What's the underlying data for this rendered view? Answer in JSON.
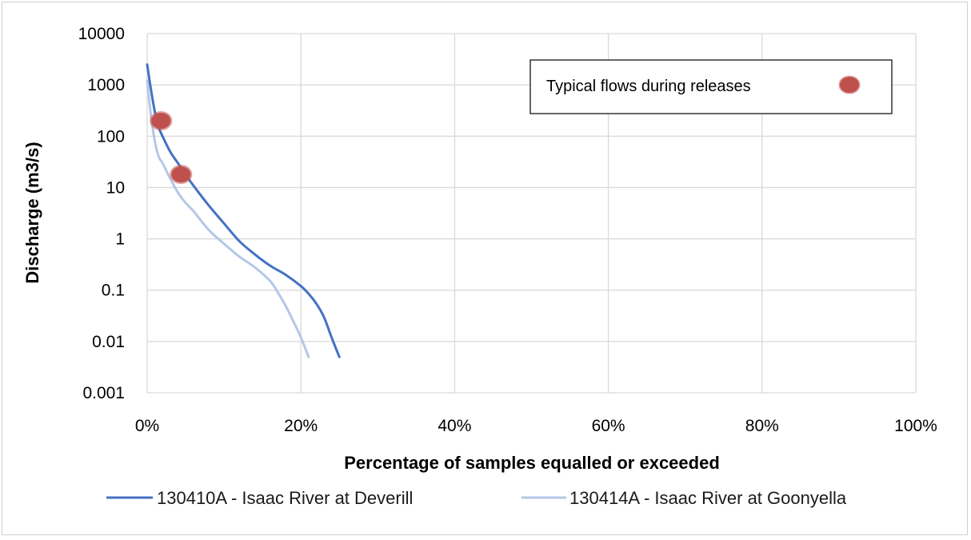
{
  "chart_data": {
    "type": "line",
    "title": "",
    "xlabel": "Percentage of samples equalled or exceeded",
    "ylabel": "Discharge (m3/s)",
    "x_scale": "linear",
    "y_scale": "log",
    "xlim": [
      0,
      100
    ],
    "ylim": [
      0.001,
      10000
    ],
    "x_tick_labels": [
      "0%",
      "20%",
      "40%",
      "60%",
      "80%",
      "100%"
    ],
    "y_tick_labels": [
      "0.001",
      "0.01",
      "0.1",
      "1",
      "10",
      "100",
      "1000",
      "10000"
    ],
    "grid": true,
    "legend_position": "bottom",
    "series": [
      {
        "name": "130410A - Isaac River at Deverill",
        "color": "#4472c4",
        "x": [
          0,
          0.5,
          1,
          1.5,
          2,
          3,
          4,
          5,
          6,
          8,
          10,
          12,
          14,
          16,
          18,
          20,
          21,
          22,
          23,
          24,
          25
        ],
        "y": [
          2500,
          800,
          300,
          150,
          100,
          50,
          30,
          18,
          11,
          4.5,
          2.0,
          0.9,
          0.5,
          0.3,
          0.2,
          0.12,
          0.085,
          0.055,
          0.03,
          0.012,
          0.005
        ]
      },
      {
        "name": "130414A - Isaac River at Goonyella",
        "color": "#b4c7e7",
        "x": [
          0,
          0.5,
          1,
          1.5,
          2,
          3,
          4,
          5,
          6,
          8,
          10,
          12,
          14,
          16,
          17,
          18,
          19,
          20,
          21
        ],
        "y": [
          1200,
          250,
          80,
          40,
          30,
          15,
          8,
          5,
          3.5,
          1.5,
          0.8,
          0.45,
          0.28,
          0.15,
          0.09,
          0.05,
          0.025,
          0.012,
          0.005
        ]
      }
    ],
    "markers": [
      {
        "label": "Typical flows during releases",
        "color": "#c0504d",
        "points": [
          {
            "x": 1.8,
            "y": 200
          },
          {
            "x": 4.4,
            "y": 18
          }
        ]
      }
    ]
  }
}
